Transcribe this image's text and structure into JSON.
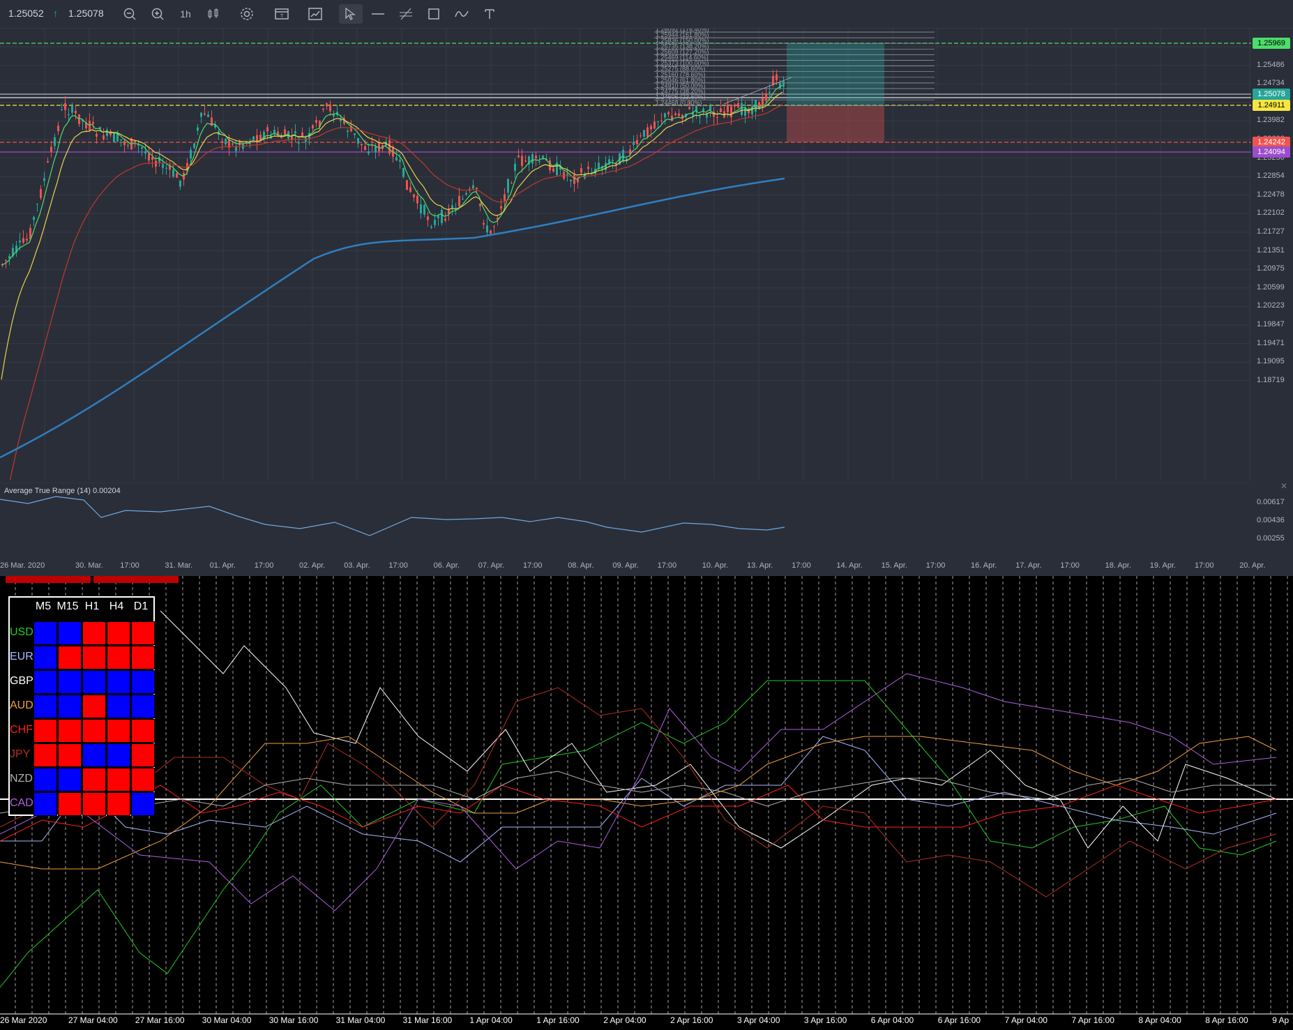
{
  "toolbar": {
    "bid": "1.25052",
    "ask": "1.25078",
    "timeframe": "1h",
    "buttons": [
      "zoom-out",
      "zoom-in",
      "timeframe",
      "chart-type",
      "settings",
      "templates",
      "indicators",
      "cursor",
      "horizontal-line",
      "parallel-channel",
      "rectangle",
      "path",
      "text"
    ]
  },
  "price_axis": {
    "ticks": [
      "1.25862",
      "1.25486",
      "1.24734",
      "1.24358",
      "1.23982",
      "1.23606",
      "1.23230",
      "1.22854",
      "1.22478",
      "1.22102",
      "1.21727",
      "1.21351",
      "1.20975",
      "1.20599",
      "1.20223",
      "1.19847",
      "1.19471",
      "1.19095",
      "1.18719"
    ],
    "tags": [
      {
        "text": "1.25969",
        "color": "#4cdd6b",
        "text_color": "#000"
      },
      {
        "text": "1.25078",
        "color": "#26a69a",
        "text_color": "#fff"
      },
      {
        "text": "1.24911",
        "color": "#f5e642",
        "text_color": "#000"
      },
      {
        "text": "1.24242",
        "color": "#ef5350",
        "text_color": "#fff"
      },
      {
        "text": "1.24094",
        "color": "#9c4dcc",
        "text_color": "#fff"
      }
    ]
  },
  "fib_labels": [
    "1.26092 (176.40%)",
    "1.25944 (161.80%)",
    "1.25836 (150.00%)",
    "1.25735 (138.20%)",
    "1.25609 (127.20%)",
    "1.25469 (114.60%)",
    "1.25373 (100.00%)",
    "1.25275 (88.60%)",
    "1.25160 (78.60%)",
    "1.25046 (61.80%)",
    "1.24910 (50.00%)",
    "1.24775 (38.20%)",
    "1.24606 (23.60%)",
    "1.24468 (0.00%)"
  ],
  "atr": {
    "title": "Average True Range (14) 0.00204",
    "ticks": [
      "0.00617",
      "0.00436",
      "0.00255"
    ]
  },
  "time_axis": [
    "26 Mar. 2020",
    "30. Mar.",
    "17:00",
    "31. Mar.",
    "01. Apr.",
    "17:00",
    "02. Apr.",
    "03. Apr.",
    "17:00",
    "06. Apr.",
    "07. Apr.",
    "17:00",
    "08. Apr.",
    "09. Apr.",
    "17:00",
    "10. Apr.",
    "13. Apr.",
    "17:00",
    "14. Apr.",
    "15. Apr.",
    "17:00",
    "16. Apr.",
    "17. Apr.",
    "17:00",
    "18. Apr.",
    "19. Apr.",
    "17:00",
    "20. Apr."
  ],
  "strength": {
    "timeframes": [
      "M5",
      "M15",
      "H1",
      "H4",
      "D1"
    ],
    "rows": [
      {
        "currency": "USD",
        "color": "#22cc22",
        "cells": [
          "blue",
          "blue",
          "red",
          "red",
          "red"
        ]
      },
      {
        "currency": "EUR",
        "color": "#aab8ff",
        "cells": [
          "blue",
          "red",
          "red",
          "red",
          "red"
        ]
      },
      {
        "currency": "GBP",
        "color": "#ffffff",
        "cells": [
          "blue",
          "blue",
          "blue",
          "blue",
          "blue"
        ]
      },
      {
        "currency": "AUD",
        "color": "#f0a040",
        "cells": [
          "blue",
          "blue",
          "red",
          "blue",
          "blue"
        ]
      },
      {
        "currency": "CHF",
        "color": "#ff2020",
        "cells": [
          "red",
          "red",
          "red",
          "red",
          "red"
        ]
      },
      {
        "currency": "JPY",
        "color": "#b03020",
        "cells": [
          "red",
          "red",
          "blue",
          "blue",
          "red"
        ]
      },
      {
        "currency": "NZD",
        "color": "#b0b0b0",
        "cells": [
          "blue",
          "blue",
          "red",
          "red",
          "red"
        ]
      },
      {
        "currency": "CAD",
        "color": "#b060e0",
        "cells": [
          "blue",
          "red",
          "red",
          "red",
          "blue"
        ]
      }
    ]
  },
  "bottom_time_axis": [
    "26 Mar 2020",
    "27 Mar 04:00",
    "27 Mar 16:00",
    "30 Mar 04:00",
    "30 Mar 16:00",
    "31 Mar 04:00",
    "31 Mar 16:00",
    "1 Apr 04:00",
    "1 Apr 16:00",
    "2 Apr 04:00",
    "2 Apr 16:00",
    "3 Apr 04:00",
    "3 Apr 16:00",
    "6 Apr 04:00",
    "6 Apr 16:00",
    "7 Apr 04:00",
    "7 Apr 16:00",
    "8 Apr 04:00",
    "8 Apr 16:00",
    "9 Ap"
  ],
  "colors": {
    "blue_cell": "#0000ff",
    "red_cell": "#ff0000",
    "bull": "#26a69a",
    "bear": "#ef5350"
  }
}
